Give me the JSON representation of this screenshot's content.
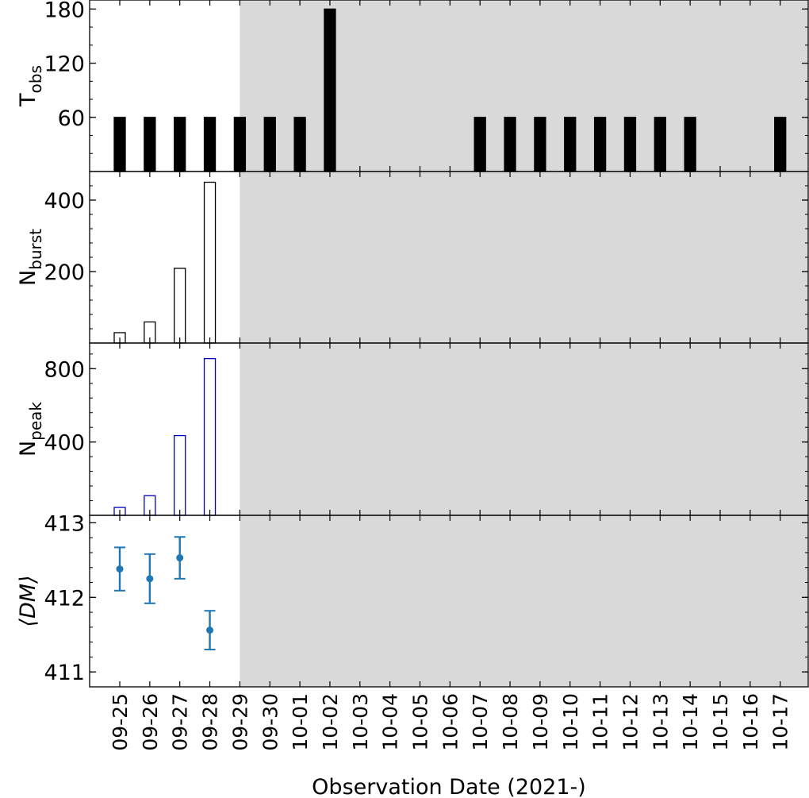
{
  "chart_data": {
    "type": "bar",
    "x_title": "Observation Date (2021-)",
    "categories": [
      "09-25",
      "09-26",
      "09-27",
      "09-28",
      "09-29",
      "09-30",
      "10-01",
      "10-02",
      "10-03",
      "10-04",
      "10-05",
      "10-06",
      "10-07",
      "10-08",
      "10-09",
      "10-10",
      "10-11",
      "10-12",
      "10-13",
      "10-14",
      "10-15",
      "10-16",
      "10-17"
    ],
    "shaded_region": {
      "from": "09-29",
      "to": "10-17",
      "color": "#d9d9d9"
    },
    "panels": [
      {
        "id": "tobs",
        "ylabel_main": "T",
        "ylabel_sub": "obs",
        "ylabel_italic": false,
        "type": "bar",
        "ylim": [
          0,
          190
        ],
        "yticks": [
          60,
          120,
          180
        ],
        "minor_step": 20,
        "bar_fill": "#000000",
        "bar_stroke": "#000000",
        "values": [
          60,
          60,
          60,
          60,
          60,
          60,
          60,
          180,
          0,
          0,
          0,
          0,
          60,
          60,
          60,
          60,
          60,
          60,
          60,
          60,
          0,
          0,
          60
        ]
      },
      {
        "id": "nburst",
        "ylabel_main": "N",
        "ylabel_sub": "burst",
        "ylabel_italic": false,
        "type": "bar",
        "ylim": [
          0,
          480
        ],
        "yticks": [
          200,
          400
        ],
        "minor_step": 40,
        "bar_fill": "none",
        "bar_stroke": "#000000",
        "values": [
          29,
          59,
          209,
          450,
          0,
          0,
          0,
          0,
          0,
          0,
          0,
          0,
          0,
          0,
          0,
          0,
          0,
          0,
          0,
          0,
          0,
          0,
          0
        ]
      },
      {
        "id": "npeak",
        "ylabel_main": "N",
        "ylabel_sub": "peak",
        "ylabel_italic": false,
        "type": "bar",
        "ylim": [
          0,
          940
        ],
        "yticks": [
          400,
          800
        ],
        "minor_step": 80,
        "bar_fill": "none",
        "bar_stroke": "#0000cc",
        "values": [
          43,
          107,
          435,
          855,
          0,
          0,
          0,
          0,
          0,
          0,
          0,
          0,
          0,
          0,
          0,
          0,
          0,
          0,
          0,
          0,
          0,
          0,
          0
        ]
      },
      {
        "id": "dm",
        "ylabel_main": "⟨DM⟩",
        "ylabel_sub": "",
        "ylabel_italic": true,
        "type": "errorbar",
        "ylim": [
          410.8,
          413.1
        ],
        "yticks": [
          411,
          412,
          413
        ],
        "minor_step": 0.2,
        "color": "#1f77b4",
        "points": [
          {
            "x": "09-25",
            "y": 412.38,
            "err": 0.29
          },
          {
            "x": "09-26",
            "y": 412.25,
            "err": 0.33
          },
          {
            "x": "09-27",
            "y": 412.53,
            "err": 0.28
          },
          {
            "x": "09-28",
            "y": 411.56,
            "err": 0.26
          }
        ]
      }
    ]
  }
}
